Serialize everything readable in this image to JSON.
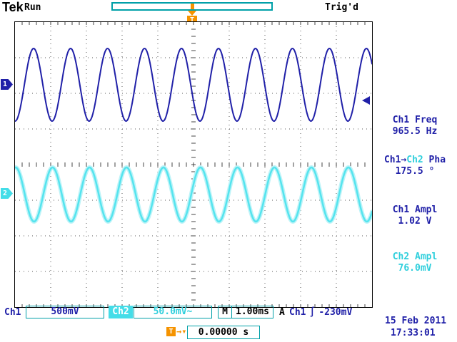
{
  "header": {
    "logo": "Tek",
    "acq_state": "Run",
    "trigger_status": "Trig'd",
    "t_marker": "T"
  },
  "channel_markers": {
    "ch1": "1",
    "ch2": "2"
  },
  "measurements": {
    "m1": {
      "label": "Ch1 Freq",
      "value": "965.5 Hz"
    },
    "m2": {
      "label_a": "Ch1",
      "arrow": "→",
      "label_b": "Ch2",
      "label_c": " Pha",
      "value": "175.5 °"
    },
    "m3": {
      "label": "Ch1 Ampl",
      "value": "1.02 V"
    },
    "m4": {
      "label": "Ch2 Ampl",
      "value": "76.0mV"
    }
  },
  "status_bar": {
    "ch1_label": "Ch1",
    "ch1_scale": "500mV",
    "ch2_label": "Ch2",
    "ch2_scale": "50.0mV~",
    "timebase_label": "M",
    "timebase_value": "1.00ms",
    "trigger_mode": "A",
    "trigger_source": "Ch1",
    "trigger_slope_symbol": "∫",
    "trigger_level": "-230mV"
  },
  "delay": {
    "marker": "T",
    "arrow": "→▾",
    "value": "0.00000 s"
  },
  "datetime": {
    "date": "15 Feb 2011",
    "time": "17:33:01"
  },
  "colors": {
    "ch1_blue": "#2020a8",
    "ch2_cyan": "#44dde8",
    "ch2_text": "#2fcfdc",
    "orange": "#f59300",
    "box_teal": "#00a0a8"
  },
  "chart_data": {
    "type": "line",
    "title": "Oscilloscope display: Ch1 and Ch2 sine waves",
    "x_axis": {
      "divisions": 10,
      "time_per_div_s": 0.001,
      "label": "M 1.00ms"
    },
    "y_axis": {
      "divisions": 8
    },
    "grid": "dotted 10x8 divisions, center axes with minor ticks",
    "trigger": {
      "source": "Ch1",
      "level_v": -0.23,
      "slope": "falling",
      "position_div": 5
    },
    "series": [
      {
        "name": "Ch1",
        "freq_hz": 965.5,
        "amplitude_vpp_v": 1.02,
        "volts_per_div": 0.5,
        "phase_offset_deg": 0,
        "center_y_div": 1.76,
        "color": "#2020a8",
        "width": 2
      },
      {
        "name": "Ch2",
        "freq_hz": 965.5,
        "amplitude_vpp_v": 0.076,
        "volts_per_div": 0.05,
        "phase_offset_deg": 175.5,
        "center_y_div": 4.84,
        "color": "#55e4ee",
        "width": 2.5,
        "glow": "#bdf3f8",
        "glow_width": 6
      }
    ]
  }
}
